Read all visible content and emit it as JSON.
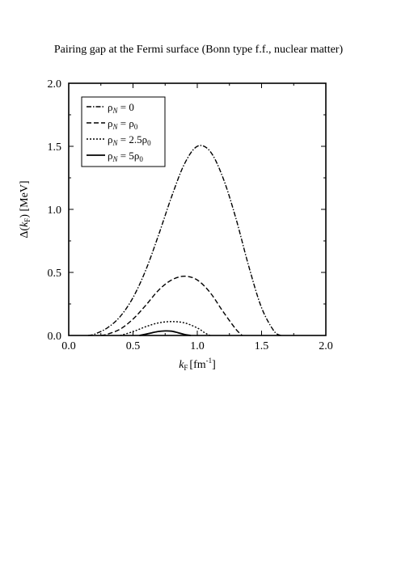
{
  "chart_data": {
    "type": "line",
    "title": "Pairing gap at the Fermi surface (Bonn type f.f., nuclear matter)",
    "xlabel": {
      "var": "k",
      "sub": "F",
      "unit": "[fm",
      "sup": "-1",
      "close": "]"
    },
    "ylabel": {
      "pre": "Δ(",
      "var": "k",
      "sub": "F",
      "post": ") [MeV]"
    },
    "xlim": [
      0.0,
      2.0
    ],
    "ylim": [
      0.0,
      2.0
    ],
    "x_ticks": [
      "0.0",
      "0.5",
      "1.0",
      "1.5",
      "2.0"
    ],
    "y_ticks": [
      "0.0",
      "0.5",
      "1.0",
      "1.5",
      "2.0"
    ],
    "grid": false,
    "legend_position": "top-left",
    "series": [
      {
        "name": "ρN = 0",
        "legend": {
          "pre": "ρ",
          "sub": "N",
          "post": " = 0"
        },
        "dash": "dashdot",
        "x": [
          0.15,
          0.2,
          0.3,
          0.4,
          0.5,
          0.6,
          0.7,
          0.8,
          0.9,
          1.0,
          1.1,
          1.2,
          1.3,
          1.4,
          1.5,
          1.6,
          1.65
        ],
        "y": [
          0.0,
          0.01,
          0.06,
          0.15,
          0.3,
          0.52,
          0.8,
          1.1,
          1.36,
          1.5,
          1.46,
          1.25,
          0.93,
          0.55,
          0.22,
          0.03,
          0.0
        ]
      },
      {
        "name": "ρN = ρ0",
        "legend": {
          "pre": "ρ",
          "sub": "N",
          "post": " = ρ",
          "post_sub": "0"
        },
        "dash": "dash",
        "x": [
          0.25,
          0.3,
          0.4,
          0.5,
          0.6,
          0.7,
          0.8,
          0.9,
          1.0,
          1.1,
          1.2,
          1.3,
          1.35
        ],
        "y": [
          0.0,
          0.01,
          0.05,
          0.13,
          0.24,
          0.36,
          0.44,
          0.47,
          0.44,
          0.34,
          0.19,
          0.05,
          0.0
        ]
      },
      {
        "name": "ρN = 2.5ρ0",
        "legend": {
          "pre": "ρ",
          "sub": "N",
          "post": " = 2.5ρ",
          "post_sub": "0"
        },
        "dash": "dot",
        "x": [
          0.4,
          0.5,
          0.6,
          0.7,
          0.8,
          0.9,
          1.0,
          1.06,
          1.1
        ],
        "y": [
          0.0,
          0.03,
          0.07,
          0.1,
          0.11,
          0.1,
          0.06,
          0.02,
          0.0
        ]
      },
      {
        "name": "ρN = 5ρ0",
        "legend": {
          "pre": "ρ",
          "sub": "N",
          "post": " = 5ρ",
          "post_sub": "0"
        },
        "dash": "solid",
        "x": [
          0.55,
          0.6,
          0.65,
          0.7,
          0.75,
          0.8,
          0.85,
          0.9,
          0.95
        ],
        "y": [
          0.0,
          0.01,
          0.022,
          0.032,
          0.036,
          0.034,
          0.022,
          0.008,
          0.0
        ]
      }
    ]
  }
}
